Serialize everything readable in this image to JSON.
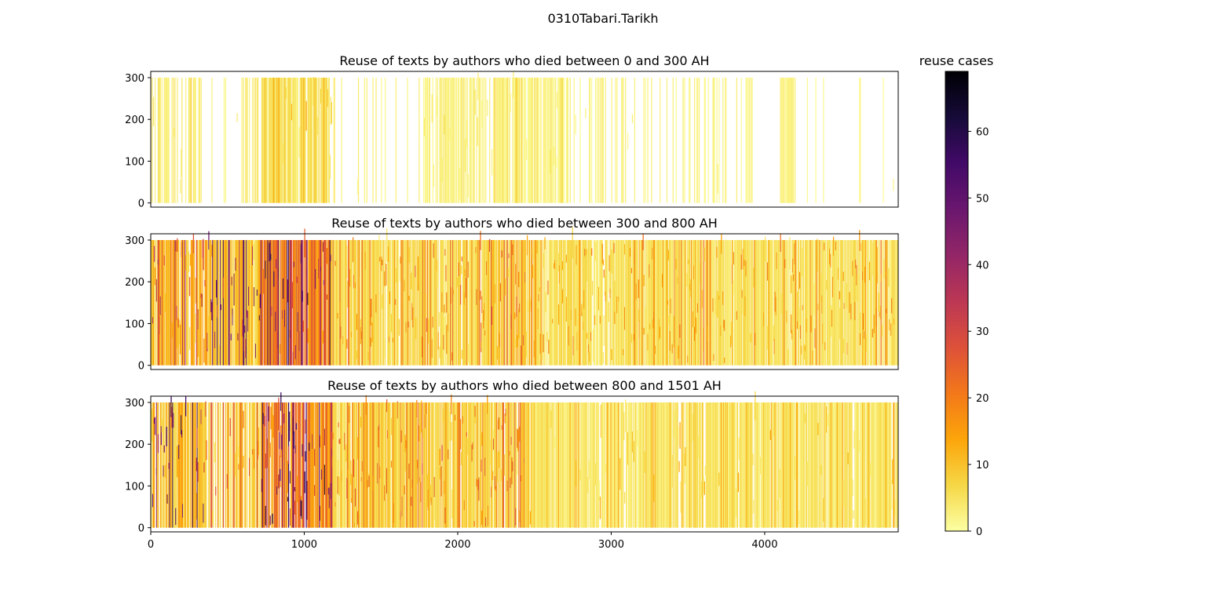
{
  "figure": {
    "suptitle": "0310Tabari.Tarikh",
    "colorbar": {
      "title": "reuse cases",
      "colormap": "inferno_r",
      "range": [
        0,
        69
      ],
      "ticks": [
        0,
        10,
        20,
        30,
        40,
        50,
        60
      ]
    }
  },
  "chart_data": [
    {
      "type": "heatmap",
      "title": "Reuse of texts by authors who died between 0 and 300 AH",
      "xlim": [
        0,
        4870
      ],
      "ylim": [
        -10,
        315
      ],
      "x_ticks": [],
      "y_ticks": [
        0,
        100,
        200,
        300
      ],
      "y_range": [
        0,
        300
      ],
      "value_range": [
        0,
        69
      ],
      "column_density": [
        {
          "x": [
            0,
            330
          ],
          "coverage": 0.55,
          "value": 3,
          "peak": 10
        },
        {
          "x": [
            330,
            560
          ],
          "coverage": 0.12,
          "value": 2,
          "peak": 4
        },
        {
          "x": [
            560,
            720
          ],
          "coverage": 0.45,
          "value": 3,
          "peak": 7
        },
        {
          "x": [
            720,
            1180
          ],
          "coverage": 0.95,
          "value": 5,
          "peak": 15
        },
        {
          "x": [
            1180,
            1780
          ],
          "coverage": 0.1,
          "value": 2,
          "peak": 4
        },
        {
          "x": [
            1780,
            2160
          ],
          "coverage": 0.85,
          "value": 2,
          "peak": 6
        },
        {
          "x": [
            2160,
            2220
          ],
          "coverage": 0.2,
          "value": 2,
          "peak": 3
        },
        {
          "x": [
            2220,
            2700
          ],
          "coverage": 0.85,
          "value": 2,
          "peak": 8
        },
        {
          "x": [
            2700,
            3250
          ],
          "coverage": 0.22,
          "value": 2,
          "peak": 4
        },
        {
          "x": [
            3250,
            3950
          ],
          "coverage": 0.25,
          "value": 2,
          "peak": 4
        },
        {
          "x": [
            4100,
            4200
          ],
          "coverage": 0.9,
          "value": 2,
          "peak": 3
        },
        {
          "x": [
            4200,
            4870
          ],
          "coverage": 0.04,
          "value": 1,
          "peak": 2
        }
      ]
    },
    {
      "type": "heatmap",
      "title": "Reuse of texts by authors who died between 300 and 800 AH",
      "xlim": [
        0,
        4870
      ],
      "ylim": [
        -10,
        315
      ],
      "x_ticks": [],
      "y_ticks": [
        0,
        100,
        200,
        300
      ],
      "y_range": [
        0,
        300
      ],
      "value_range": [
        0,
        69
      ],
      "column_density": [
        {
          "x": [
            0,
            370
          ],
          "coverage": 1.0,
          "value": 12,
          "peak": 40
        },
        {
          "x": [
            370,
            700
          ],
          "coverage": 1.0,
          "value": 9,
          "peak": 55
        },
        {
          "x": [
            700,
            1180
          ],
          "coverage": 1.0,
          "value": 20,
          "peak": 60
        },
        {
          "x": [
            1180,
            2200
          ],
          "coverage": 1.0,
          "value": 6,
          "peak": 25
        },
        {
          "x": [
            2200,
            2450
          ],
          "coverage": 1.0,
          "value": 9,
          "peak": 30
        },
        {
          "x": [
            2450,
            4870
          ],
          "coverage": 1.0,
          "value": 5,
          "peak": 22
        }
      ]
    },
    {
      "type": "heatmap",
      "title": "Reuse of texts by authors who died between 800 and 1501 AH",
      "xlim": [
        0,
        4870
      ],
      "ylim": [
        -10,
        315
      ],
      "x_ticks": [
        0,
        1000,
        2000,
        3000,
        4000
      ],
      "y_ticks": [
        0,
        100,
        200,
        300
      ],
      "y_range": [
        0,
        300
      ],
      "value_range": [
        0,
        69
      ],
      "column_density": [
        {
          "x": [
            0,
            350
          ],
          "coverage": 0.9,
          "value": 10,
          "peak": 60
        },
        {
          "x": [
            350,
            720
          ],
          "coverage": 0.75,
          "value": 8,
          "peak": 30
        },
        {
          "x": [
            720,
            1180
          ],
          "coverage": 1.0,
          "value": 20,
          "peak": 62
        },
        {
          "x": [
            1180,
            2450
          ],
          "coverage": 1.0,
          "value": 7,
          "peak": 28
        },
        {
          "x": [
            2450,
            4870
          ],
          "coverage": 1.0,
          "value": 4,
          "peak": 15
        }
      ]
    }
  ]
}
